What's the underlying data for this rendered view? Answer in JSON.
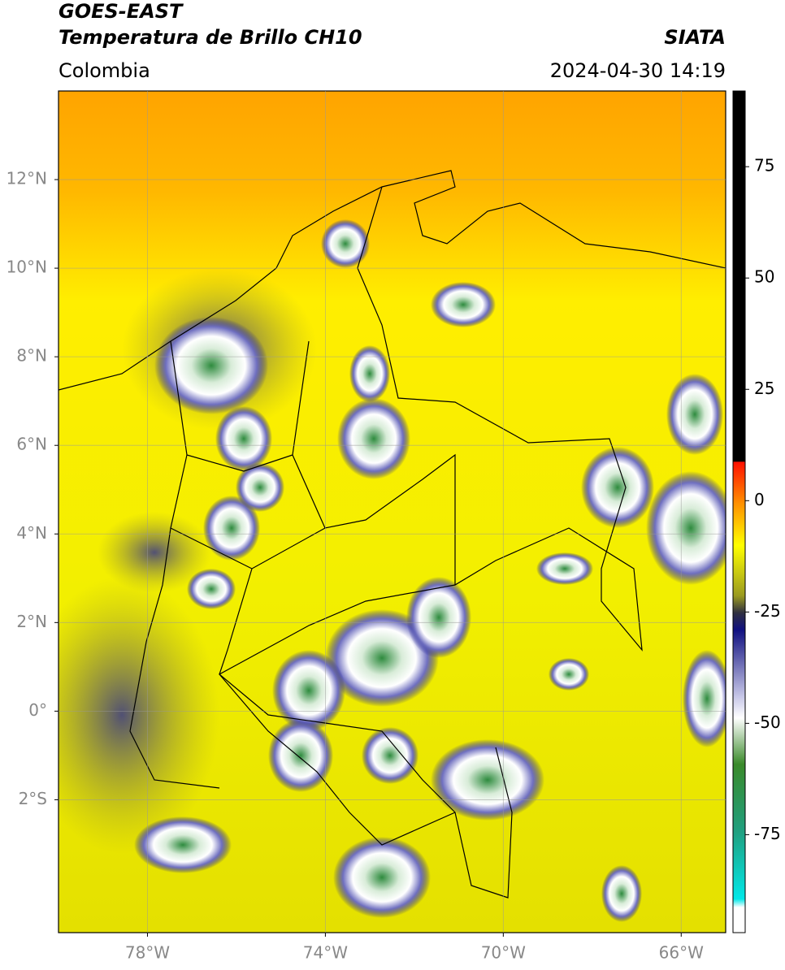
{
  "header": {
    "title_line1": "GOES-EAST",
    "title_line2": "Temperatura de Brillo CH10",
    "source": "SIATA",
    "region": "Colombia",
    "timestamp": "2024-04-30 14:19"
  },
  "map": {
    "xlim": [
      -80,
      -65
    ],
    "ylim": [
      -5,
      14
    ],
    "xticks": [
      {
        "value": -78,
        "label": "78°W"
      },
      {
        "value": -74,
        "label": "74°W"
      },
      {
        "value": -70,
        "label": "70°W"
      },
      {
        "value": -66,
        "label": "66°W"
      }
    ],
    "yticks": [
      {
        "value": 12,
        "label": "12°N"
      },
      {
        "value": 10,
        "label": "10°N"
      },
      {
        "value": 8,
        "label": "8°N"
      },
      {
        "value": 6,
        "label": "6°N"
      },
      {
        "value": 4,
        "label": "4°N"
      },
      {
        "value": 2,
        "label": "2°N"
      },
      {
        "value": 0,
        "label": "0°"
      },
      {
        "value": -2,
        "label": "2°S"
      }
    ]
  },
  "colorbar": {
    "lim": [
      -97,
      92
    ],
    "ticks": [
      75,
      50,
      25,
      0,
      -25,
      -50,
      -75
    ]
  }
}
